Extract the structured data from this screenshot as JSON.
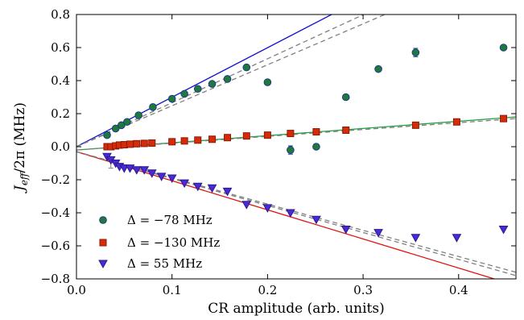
{
  "chart_data": {
    "type": "scatter",
    "xlabel": "CR amplitude (arb. units)",
    "ylabel": "J_{eff}/2π (MHz)",
    "ylabel_main": "J",
    "ylabel_sub": "eff",
    "ylabel_rest": "/2π (MHz)",
    "xlim": [
      0.0,
      0.46
    ],
    "ylim": [
      -0.8,
      0.8
    ],
    "xticks": [
      0.0,
      0.1,
      0.2,
      0.3,
      0.4
    ],
    "xtick_labels": [
      "0.0",
      "0.1",
      "0.2",
      "0.3",
      "0.4"
    ],
    "yticks": [
      -0.8,
      -0.6,
      -0.4,
      -0.2,
      0.0,
      0.2,
      0.4,
      0.6,
      0.8
    ],
    "ytick_labels": [
      "−0.8",
      "−0.6",
      "−0.4",
      "−0.2",
      "0.0",
      "0.2",
      "0.4",
      "0.6",
      "0.8"
    ],
    "grid": false,
    "legend_position": "lower-left",
    "series": [
      {
        "name": "Δ = −78 MHz",
        "marker": "circle",
        "color": "#1f7a3a",
        "edge": "#1a3a8a",
        "x": [
          0.032,
          0.041,
          0.047,
          0.053,
          0.065,
          0.08,
          0.1,
          0.113,
          0.127,
          0.142,
          0.158,
          0.178,
          0.2,
          0.224,
          0.251,
          0.282,
          0.316,
          0.355,
          0.447
        ],
        "y": [
          0.07,
          0.11,
          0.13,
          0.15,
          0.19,
          0.24,
          0.29,
          0.32,
          0.35,
          0.38,
          0.41,
          0.48,
          0.39,
          -0.02,
          0.0,
          0.3,
          0.47,
          0.57,
          0.6
        ]
      },
      {
        "name": "Δ = −130 MHz",
        "marker": "square",
        "color": "#d62a0a",
        "edge": "#8a1a00",
        "x": [
          0.032,
          0.036,
          0.041,
          0.045,
          0.05,
          0.056,
          0.063,
          0.071,
          0.079,
          0.1,
          0.113,
          0.127,
          0.142,
          0.158,
          0.178,
          0.2,
          0.224,
          0.251,
          0.282,
          0.355,
          0.398,
          0.447
        ],
        "y": [
          0.0,
          0.0,
          0.005,
          0.01,
          0.012,
          0.015,
          0.018,
          0.02,
          0.022,
          0.03,
          0.035,
          0.04,
          0.045,
          0.055,
          0.065,
          0.07,
          0.08,
          0.09,
          0.1,
          0.13,
          0.15,
          0.17
        ]
      },
      {
        "name": "Δ = 55 MHz",
        "marker": "triangle-down",
        "color": "#4a2ad8",
        "edge": "#2a1a8a",
        "x": [
          0.032,
          0.036,
          0.041,
          0.045,
          0.05,
          0.056,
          0.063,
          0.071,
          0.079,
          0.089,
          0.1,
          0.113,
          0.127,
          0.142,
          0.158,
          0.178,
          0.2,
          0.224,
          0.251,
          0.282,
          0.316,
          0.355,
          0.398,
          0.447
        ],
        "y": [
          -0.06,
          -0.08,
          -0.1,
          -0.12,
          -0.13,
          -0.13,
          -0.14,
          -0.14,
          -0.16,
          -0.18,
          -0.19,
          -0.22,
          -0.24,
          -0.25,
          -0.27,
          -0.35,
          -0.37,
          -0.4,
          -0.44,
          -0.5,
          -0.52,
          -0.55,
          -0.55,
          -0.5
        ]
      }
    ],
    "fit_lines": [
      {
        "color": "#1010d0",
        "style": "solid",
        "x": [
          0.0,
          0.46
        ],
        "y": [
          0.0,
          1.378
        ]
      },
      {
        "color": "#808080",
        "style": "dashed",
        "x": [
          0.0,
          0.46
        ],
        "y": [
          0.0,
          1.224
        ]
      },
      {
        "color": "#808080",
        "style": "dashed",
        "x": [
          0.0,
          0.46
        ],
        "y": [
          0.0,
          1.14
        ]
      },
      {
        "color": "#20a040",
        "style": "solid",
        "x": [
          0.0,
          0.46
        ],
        "y": [
          -0.02,
          0.18
        ]
      },
      {
        "color": "#808080",
        "style": "dashed",
        "x": [
          0.0,
          0.46
        ],
        "y": [
          -0.02,
          0.17
        ]
      },
      {
        "color": "#e01010",
        "style": "solid",
        "x": [
          0.0,
          0.46
        ],
        "y": [
          -0.03,
          -0.84
        ]
      },
      {
        "color": "#808080",
        "style": "dashed",
        "x": [
          0.0,
          0.46
        ],
        "y": [
          -0.03,
          -0.76
        ]
      },
      {
        "color": "#808080",
        "style": "dashed",
        "x": [
          0.0,
          0.46
        ],
        "y": [
          -0.03,
          -0.78
        ]
      }
    ],
    "error_bars": [
      {
        "x": 0.355,
        "y": 0.57,
        "err": 0.025,
        "color": "#1a3a8a"
      },
      {
        "x": 0.224,
        "y": -0.02,
        "err": 0.025,
        "color": "#1a3a8a"
      },
      {
        "x": 0.036,
        "y": -0.1,
        "err": 0.03,
        "color": "#808080"
      }
    ]
  }
}
